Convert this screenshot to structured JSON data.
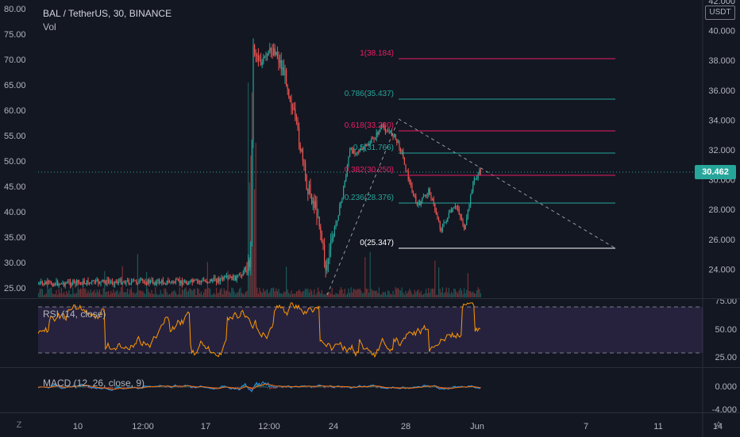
{
  "header": {
    "symbol": "BAL / TetherUS, 30, BINANCE",
    "volume_label": "Vol",
    "currency": "USDT"
  },
  "price": {
    "current": "30.462",
    "current_color": "#26a69a"
  },
  "left_axis": [
    "80.00",
    "75.00",
    "70.00",
    "65.00",
    "60.00",
    "55.00",
    "50.00",
    "45.00",
    "40.00",
    "35.00",
    "30.00",
    "25.00"
  ],
  "right_axis": [
    "42.000",
    "40.000",
    "38.000",
    "36.000",
    "34.000",
    "32.000",
    "30.000",
    "28.000",
    "26.000",
    "24.000"
  ],
  "fib_levels": [
    {
      "label": "1(38.184)",
      "color": "#e91e63"
    },
    {
      "label": "0.786(35.437)",
      "color": "#26a69a"
    },
    {
      "label": "0.618(33.280)",
      "color": "#e91e63"
    },
    {
      "label": "0.5(31.766)",
      "color": "#26a69a"
    },
    {
      "label": "0.382(30.250)",
      "color": "#e91e63"
    },
    {
      "label": "0.236(28.376)",
      "color": "#26a69a"
    },
    {
      "label": "0(25.347)",
      "color": "#ffffff"
    }
  ],
  "rsi": {
    "label": "RSI (14, close)",
    "axis": [
      "75.00",
      "50.00",
      "25.00"
    ],
    "line_color": "#ff9800",
    "band_color": "#7e57c2"
  },
  "macd": {
    "label": "MACD (12, 26, close, 9)",
    "axis": [
      "0.000",
      "-4.000"
    ]
  },
  "time_axis": [
    "10",
    "12:00",
    "17",
    "12:00",
    "24",
    "28",
    "Jun",
    "7",
    "11",
    "14"
  ],
  "corner_buttons": {
    "left": "Z",
    "right": "A"
  },
  "colors": {
    "up": "#26a69a",
    "down": "#ef5350",
    "background": "#131722"
  }
}
